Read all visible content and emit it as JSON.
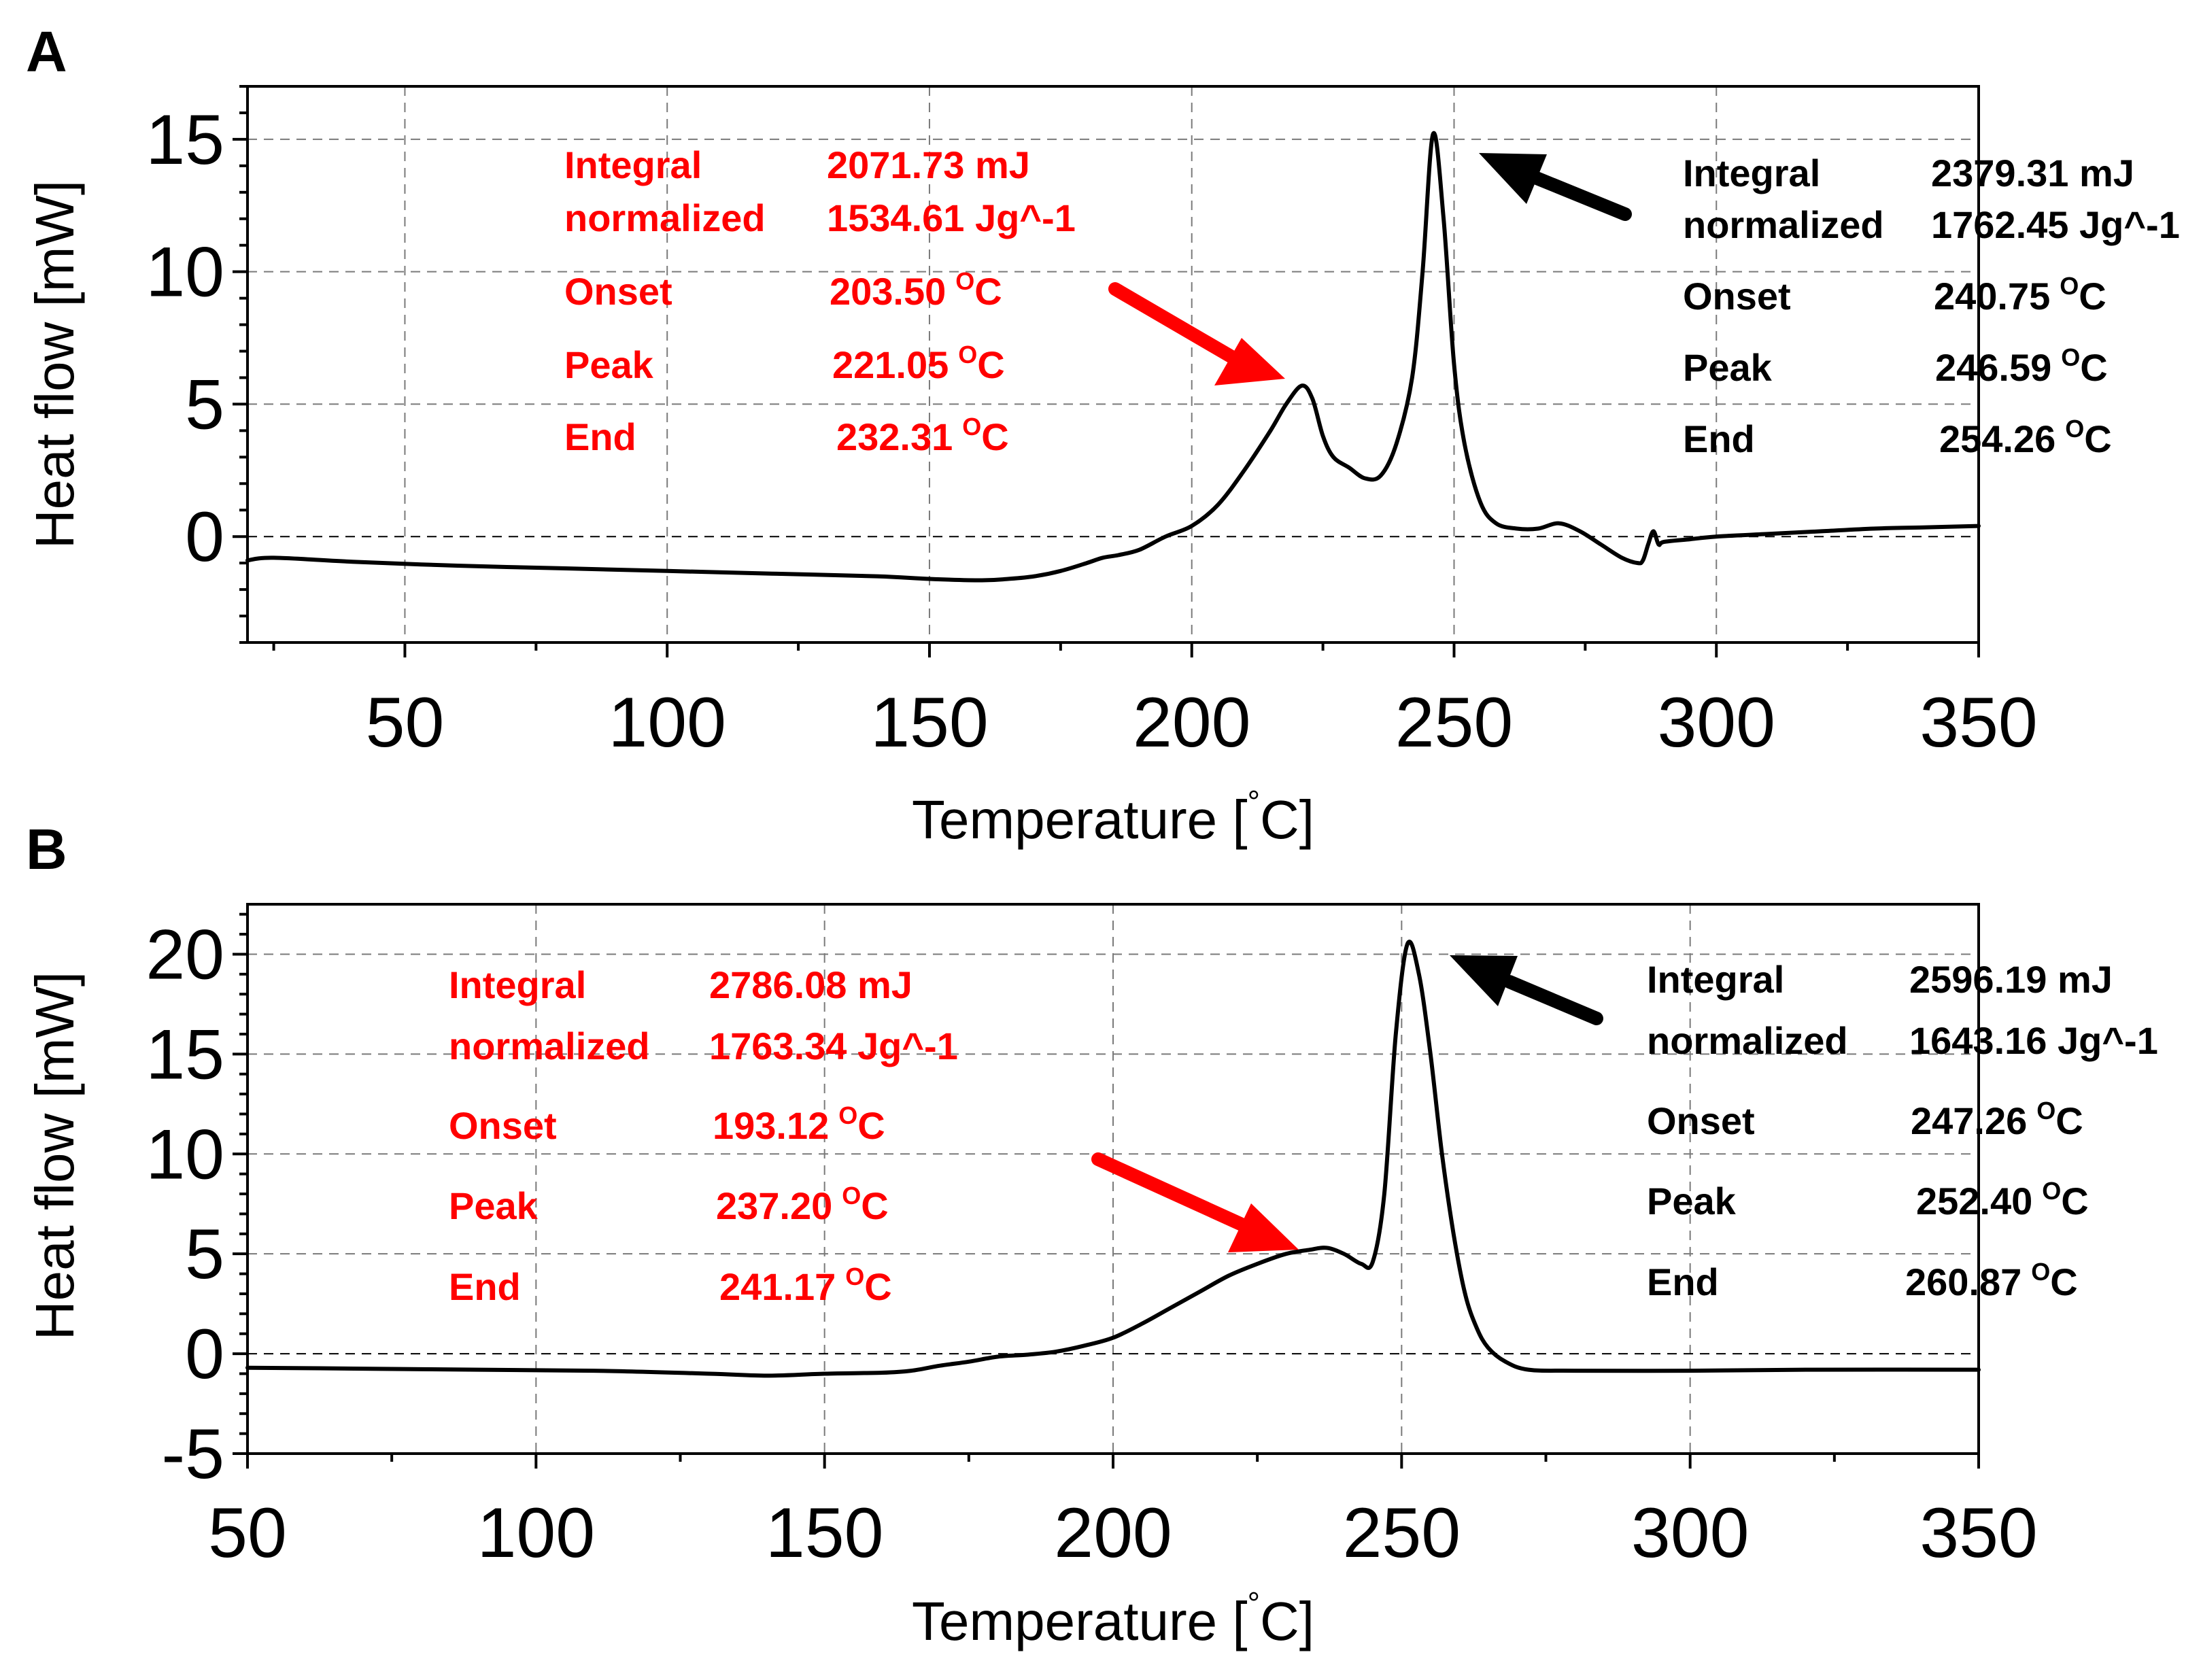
{
  "chart_data": [
    {
      "panel": "A",
      "type": "line",
      "title": "",
      "xlabel": "Temperature [",
      "xlabel_degree": "°",
      "xlabel_unit": "C]",
      "ylabel": "Heat flow [mW]",
      "xlim": [
        20,
        350
      ],
      "ylim": [
        -4,
        17
      ],
      "xticks": [
        50,
        100,
        150,
        200,
        250,
        300,
        350
      ],
      "yticks": [
        0,
        5,
        10,
        15
      ],
      "grid": true,
      "series": [
        {
          "color": "#000000",
          "x": [
            20,
            25,
            40,
            60,
            80,
            100,
            120,
            140,
            150,
            160,
            165,
            170,
            175,
            180,
            183,
            186,
            190,
            195,
            200,
            205,
            210,
            215,
            218,
            221,
            223,
            225,
            227,
            230,
            233,
            236,
            239,
            242,
            244,
            246,
            248,
            250,
            252,
            255,
            258,
            262,
            266,
            270,
            274,
            278,
            282,
            285,
            286,
            287,
            288,
            289,
            290,
            295,
            300,
            310,
            320,
            330,
            340,
            350
          ],
          "y": [
            -0.9,
            -0.8,
            -0.95,
            -1.1,
            -1.2,
            -1.3,
            -1.4,
            -1.5,
            -1.6,
            -1.65,
            -1.6,
            -1.5,
            -1.3,
            -1.0,
            -0.8,
            -0.7,
            -0.5,
            0.0,
            0.4,
            1.2,
            2.5,
            4.0,
            5.0,
            5.7,
            5.2,
            3.8,
            3.0,
            2.6,
            2.2,
            2.3,
            3.5,
            6.0,
            10.0,
            15.2,
            12.0,
            6.5,
            3.5,
            1.3,
            0.5,
            0.3,
            0.3,
            0.5,
            0.2,
            -0.3,
            -0.8,
            -1.0,
            -0.9,
            -0.3,
            0.2,
            -0.3,
            -0.2,
            -0.1,
            0.0,
            0.1,
            0.2,
            0.3,
            0.35,
            0.4
          ]
        }
      ],
      "annotations": {
        "first_peak": {
          "color": "#ff0000",
          "integral_label": "Integral",
          "integral_value": "2071.73 mJ",
          "normalized_label": "normalized",
          "normalized_value": "1534.61 Jg^-1",
          "onset_label": "Onset",
          "onset_value": "203.50",
          "peak_label": "Peak",
          "peak_value": "221.05",
          "end_label": "End",
          "end_value": "232.31",
          "unit_sup": "O",
          "unit": "C"
        },
        "second_peak": {
          "color": "#000000",
          "integral_label": "Integral",
          "integral_value": "2379.31 mJ",
          "normalized_label": "normalized",
          "normalized_value": "1762.45 Jg^-1",
          "onset_label": "Onset",
          "onset_value": "240.75",
          "peak_label": "Peak",
          "peak_value": "246.59",
          "end_label": "End",
          "end_value": "254.26",
          "unit_sup": "O",
          "unit": "C"
        }
      }
    },
    {
      "panel": "B",
      "type": "line",
      "title": "",
      "xlabel": "Temperature [",
      "xlabel_degree": "°",
      "xlabel_unit": "C]",
      "ylabel": "Heat flow [mW]",
      "xlim": [
        50,
        350
      ],
      "ylim": [
        -5,
        22.5
      ],
      "xticks": [
        50,
        100,
        150,
        200,
        250,
        300,
        350
      ],
      "yticks": [
        -5,
        0,
        5,
        10,
        15,
        20
      ],
      "grid": true,
      "series": [
        {
          "color": "#000000",
          "x": [
            50,
            70,
            90,
            110,
            130,
            140,
            150,
            160,
            165,
            170,
            175,
            180,
            185,
            190,
            195,
            200,
            205,
            210,
            215,
            220,
            225,
            230,
            234,
            237,
            240,
            243,
            245,
            247,
            249,
            251,
            253,
            255,
            257,
            259,
            261,
            263,
            265,
            268,
            272,
            280,
            300,
            320,
            350
          ],
          "y": [
            -0.7,
            -0.75,
            -0.8,
            -0.85,
            -1.0,
            -1.1,
            -1.0,
            -0.95,
            -0.85,
            -0.6,
            -0.4,
            -0.15,
            -0.05,
            0.1,
            0.4,
            0.8,
            1.5,
            2.3,
            3.1,
            3.9,
            4.5,
            5.0,
            5.2,
            5.3,
            5.0,
            4.5,
            4.6,
            8.0,
            16.0,
            20.5,
            19.0,
            15.0,
            10.0,
            6.0,
            3.0,
            1.3,
            0.3,
            -0.4,
            -0.8,
            -0.85,
            -0.85,
            -0.8,
            -0.8
          ]
        }
      ],
      "annotations": {
        "first_peak": {
          "color": "#ff0000",
          "integral_label": "Integral",
          "integral_value": "2786.08 mJ",
          "normalized_label": "normalized",
          "normalized_value": "1763.34 Jg^-1",
          "onset_label": "Onset",
          "onset_value": "193.12",
          "peak_label": "Peak",
          "peak_value": "237.20",
          "end_label": "End",
          "end_value": "241.17",
          "unit_sup": "O",
          "unit": "C"
        },
        "second_peak": {
          "color": "#000000",
          "integral_label": "Integral",
          "integral_value": "2596.19 mJ",
          "normalized_label": "normalized",
          "normalized_value": "1643.16 Jg^-1",
          "onset_label": "Onset",
          "onset_value": "247.26",
          "peak_label": "Peak",
          "peak_value": "252.40",
          "end_label": "End",
          "end_value": "260.87",
          "unit_sup": "O",
          "unit": "C"
        }
      }
    }
  ]
}
